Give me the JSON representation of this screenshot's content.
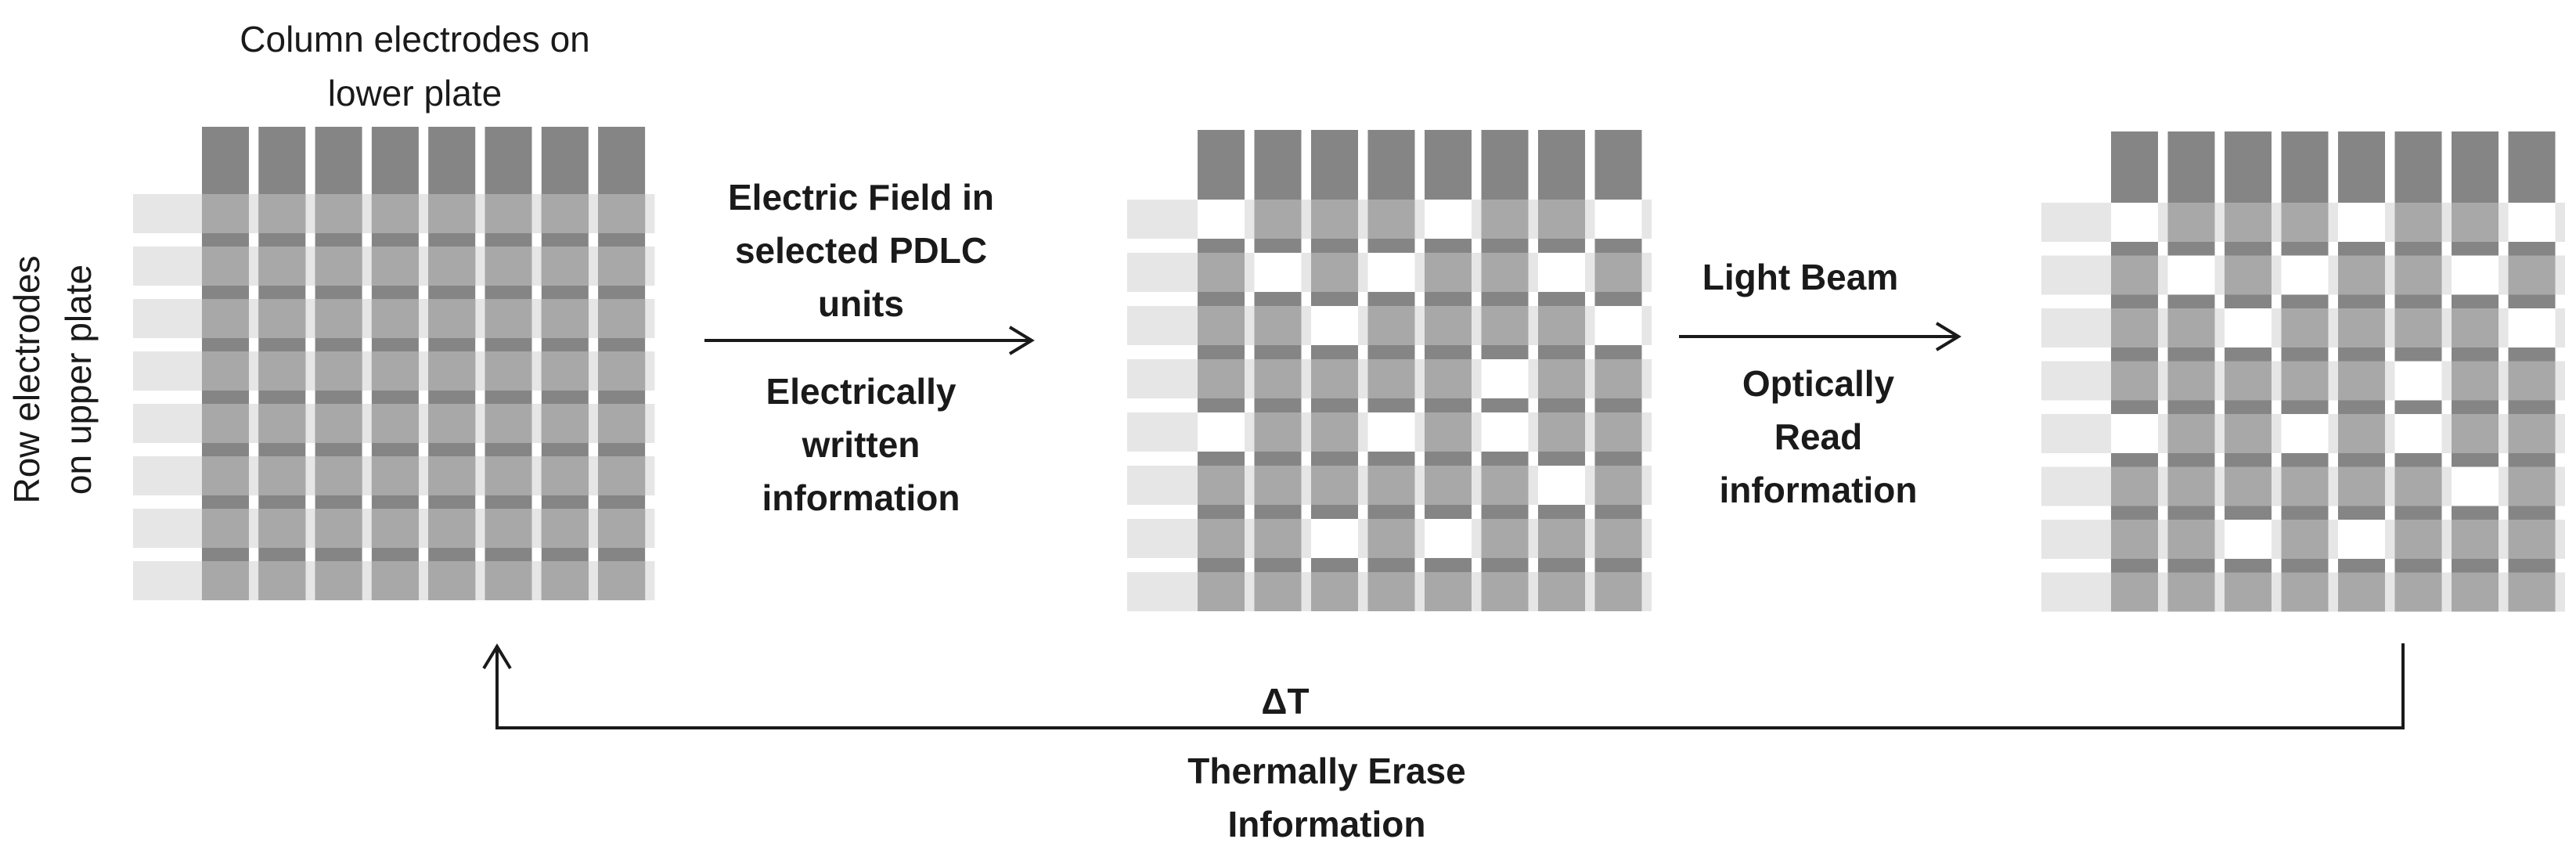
{
  "labels": {
    "column_electrodes_line1": "Column electrodes on",
    "column_electrodes_line2": "lower plate",
    "row_electrodes_line1": "Row electrodes",
    "row_electrodes_line2": "on upper plate",
    "step1_top_line1": "Electric Field in",
    "step1_top_line2": "selected PDLC",
    "step1_top_line3": "units",
    "step1_bottom_line1": "Electrically",
    "step1_bottom_line2": "written",
    "step1_bottom_line3": "information",
    "step2_top": "Light Beam",
    "step2_bottom_line1": "Optically",
    "step2_bottom_line2": "Read",
    "step2_bottom_line3": "information",
    "delta_t": "ΔT",
    "erase_line1": "Thermally Erase",
    "erase_line2": "Information"
  },
  "grid": {
    "rows": 8,
    "columns": 8,
    "written_cells_matrix2": [
      [
        0,
        0
      ],
      [
        0,
        4
      ],
      [
        0,
        7
      ],
      [
        1,
        1
      ],
      [
        1,
        3
      ],
      [
        1,
        6
      ],
      [
        2,
        2
      ],
      [
        2,
        7
      ],
      [
        3,
        5
      ],
      [
        4,
        0
      ],
      [
        4,
        3
      ],
      [
        4,
        5
      ],
      [
        5,
        6
      ],
      [
        6,
        2
      ],
      [
        6,
        4
      ]
    ],
    "written_cells_matrix3": [
      [
        0,
        0
      ],
      [
        0,
        4
      ],
      [
        0,
        7
      ],
      [
        1,
        1
      ],
      [
        1,
        3
      ],
      [
        1,
        6
      ],
      [
        2,
        2
      ],
      [
        2,
        7
      ],
      [
        3,
        5
      ],
      [
        4,
        0
      ],
      [
        4,
        3
      ],
      [
        4,
        5
      ],
      [
        5,
        6
      ],
      [
        6,
        2
      ],
      [
        6,
        4
      ]
    ]
  },
  "colors": {
    "electrode_dark": "#858585",
    "cell_gray": "#a8a8a8",
    "row_stub": "#e6e6e6",
    "written_cell": "#ffffff",
    "line": "#1a1a1a"
  }
}
